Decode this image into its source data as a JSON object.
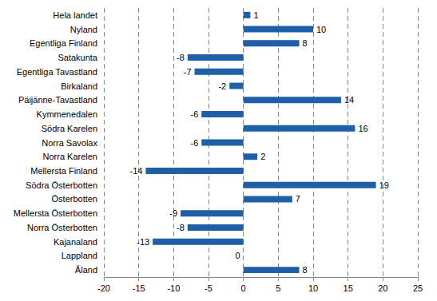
{
  "chart_data": {
    "type": "bar",
    "orientation": "horizontal",
    "categories": [
      "Hela landet",
      "Nyland",
      "Egentliga Finland",
      "Satakunta",
      "Egentliga Tavastland",
      "Birkaland",
      "Päijänne-Tavastland",
      "Kymmenedalen",
      "Södra Karelen",
      "Norra Savolax",
      "Norra Karelen",
      "Mellersta Finland",
      "Södra Österbotten",
      "Österbotten",
      "Mellersta Österbotten",
      "Norra Österbotten",
      "Kajanaland",
      "Lappland",
      "Åland"
    ],
    "values": [
      1,
      10,
      8,
      -8,
      -7,
      -2,
      14,
      -6,
      16,
      -6,
      2,
      -14,
      19,
      7,
      -9,
      -8,
      -13,
      0,
      8
    ],
    "color": "#1f5fa8",
    "xlim": [
      -20,
      25
    ],
    "xticks": [
      -20,
      -15,
      -10,
      -5,
      0,
      5,
      10,
      15,
      20,
      25
    ],
    "grid": true,
    "data_labels": true
  }
}
